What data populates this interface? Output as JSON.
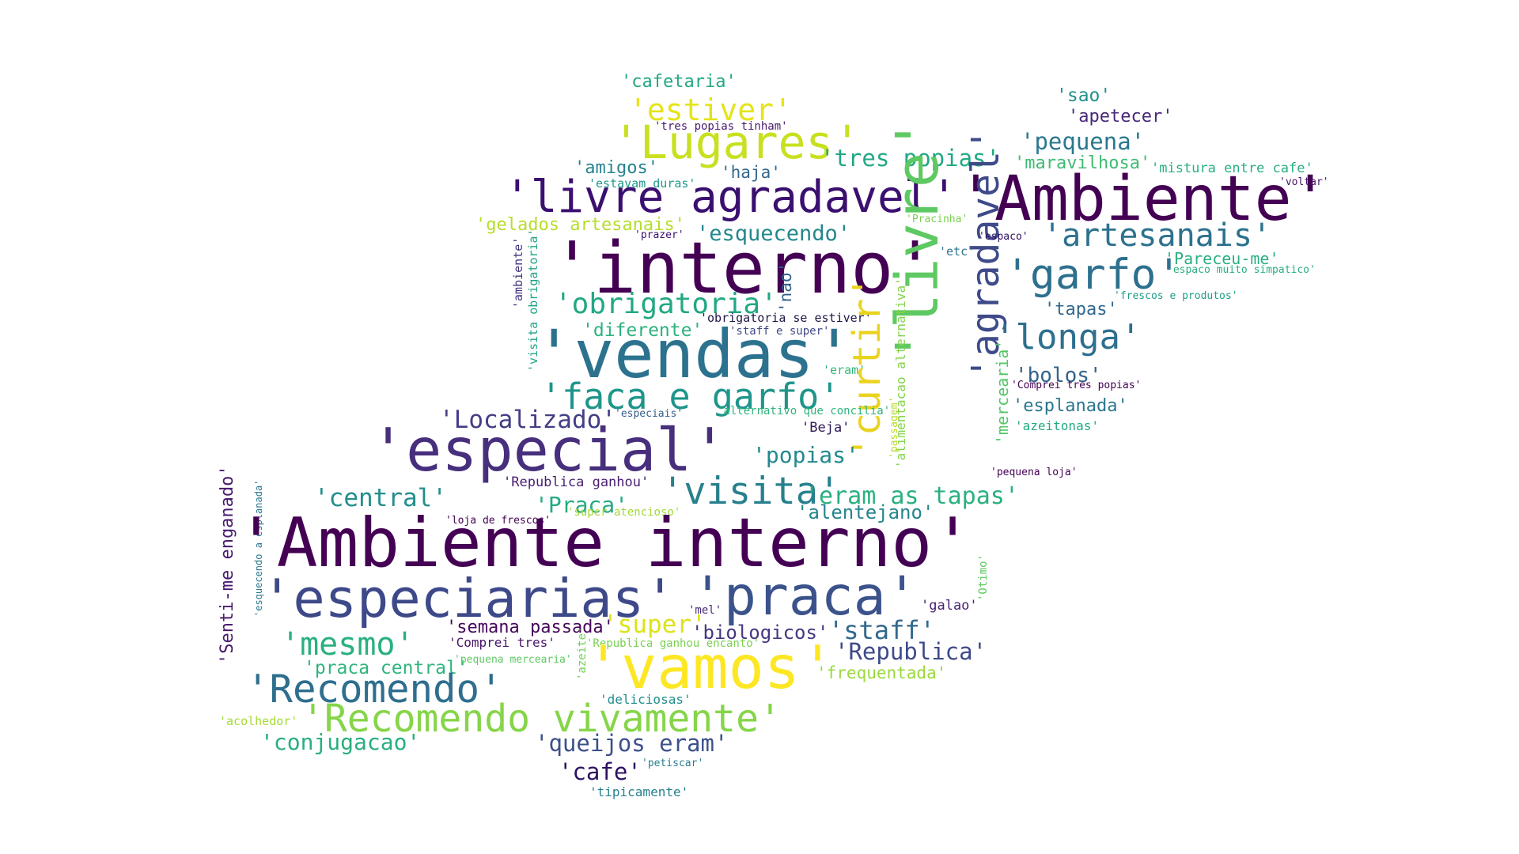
{
  "words": [
    {
      "text": "'cafetaria'",
      "color": "#25a884"
    },
    {
      "text": "'estiver'",
      "color": "#e5e419"
    },
    {
      "text": "'tres popias tinham'",
      "color": "#481a6c"
    },
    {
      "text": "'Lugares'",
      "color": "#c8e020"
    },
    {
      "text": "'tres popias'",
      "color": "#22a884"
    },
    {
      "text": "'amigos'",
      "color": "#26828e"
    },
    {
      "text": "'haja'",
      "color": "#31688e"
    },
    {
      "text": "'estavam duras'",
      "color": "#1f988b"
    },
    {
      "text": "'livre agradavel'",
      "color": "#3b0f70"
    },
    {
      "text": "'Ambiente'",
      "color": "#440154"
    },
    {
      "text": "'sao'",
      "color": "#21918c"
    },
    {
      "text": "'apetecer'",
      "color": "#482878"
    },
    {
      "text": "'pequena'",
      "color": "#2a788e"
    },
    {
      "text": "'maravilhosa'",
      "color": "#3fbc73"
    },
    {
      "text": "'mistura entre cafe'",
      "color": "#29af7f"
    },
    {
      "text": "'voltar'",
      "color": "#481467"
    },
    {
      "text": "'gelados artesanais'",
      "color": "#b5de2b"
    },
    {
      "text": "'prazer'",
      "color": "#3b0f70"
    },
    {
      "text": "'esquecendo'",
      "color": "#24878e"
    },
    {
      "text": "'interno'",
      "color": "#440154"
    },
    {
      "text": "'livre'",
      "color": "#5ec962"
    },
    {
      "text": "'agradavel'",
      "color": "#3e4a89"
    },
    {
      "text": "'Pracinha'",
      "color": "#7ad151"
    },
    {
      "text": "'espaco'",
      "color": "#2c0e5e"
    },
    {
      "text": "'etc'",
      "color": "#2b758e"
    },
    {
      "text": "'artesanais'",
      "color": "#2c728e"
    },
    {
      "text": "'Pareceu-me'",
      "color": "#29af7f"
    },
    {
      "text": "'espaco muito simpatico'",
      "color": "#2ab07f"
    },
    {
      "text": "'garfo'",
      "color": "#2d708e"
    },
    {
      "text": "'ambiente'",
      "color": "#46337f"
    },
    {
      "text": "'visita obrigatoria'",
      "color": "#20a386"
    },
    {
      "text": "'frescos e produtos'",
      "color": "#1e9c89"
    },
    {
      "text": "'obrigatoria'",
      "color": "#22a884"
    },
    {
      "text": "'nao'",
      "color": "#355f8d"
    },
    {
      "text": "'tapas'",
      "color": "#31688e"
    },
    {
      "text": "'obrigatoria se estiver'",
      "color": "#1f1646"
    },
    {
      "text": "'diferente'",
      "color": "#2db27d"
    },
    {
      "text": "'curtir'",
      "color": "#ead31f"
    },
    {
      "text": "'alimentacao alternativa'",
      "color": "#84d44b"
    },
    {
      "text": "'longa'",
      "color": "#2e6f8e"
    },
    {
      "text": "'staff e super'",
      "color": "#3e4989"
    },
    {
      "text": "'vendas'",
      "color": "#2c728e"
    },
    {
      "text": "'eram'",
      "color": "#35b779"
    },
    {
      "text": "'mercearia'",
      "color": "#55c667"
    },
    {
      "text": "'bolos'",
      "color": "#33638d"
    },
    {
      "text": "'Comprei tres popias'",
      "color": "#440154"
    },
    {
      "text": "'faca e garfo'",
      "color": "#1f958b"
    },
    {
      "text": "'esplanada'",
      "color": "#2a768e"
    },
    {
      "text": "'especiais'",
      "color": "#355e8d"
    },
    {
      "text": "'alternativo que concilia'",
      "color": "#2fb47c"
    },
    {
      "text": "'Localizado'",
      "color": "#433e85"
    },
    {
      "text": "'Beja'",
      "color": "#2e1a56"
    },
    {
      "text": "'azeitonas'",
      "color": "#24aa83"
    },
    {
      "text": "'especial'",
      "color": "#472f7d"
    },
    {
      "text": "'popias'",
      "color": "#23898e"
    },
    {
      "text": "'passagem'",
      "color": "#b8de29"
    },
    {
      "text": "'pequena loja'",
      "color": "#440154"
    },
    {
      "text": "'Republica ganhou'",
      "color": "#481f70"
    },
    {
      "text": "'visita'",
      "color": "#27808e"
    },
    {
      "text": "'eram as tapas'",
      "color": "#2ab07f"
    },
    {
      "text": "'central'",
      "color": "#218f8d"
    },
    {
      "text": "'Praca'",
      "color": "#24aa83"
    },
    {
      "text": "'alentejano'",
      "color": "#25848e"
    },
    {
      "text": "'loja de frescos'",
      "color": "#440154"
    },
    {
      "text": "'super atencioso'",
      "color": "#a2da37"
    },
    {
      "text": "'Senti-me enganado'",
      "color": "#481c6e"
    },
    {
      "text": "'esquecendo a esplanada'",
      "color": "#2a788e"
    },
    {
      "text": "'Ambiente interno'",
      "color": "#440154"
    },
    {
      "text": "'Otimo'",
      "color": "#5ec962"
    },
    {
      "text": "'especiarias'",
      "color": "#3e4989"
    },
    {
      "text": "'praca'",
      "color": "#3b528b"
    },
    {
      "text": "'mel'",
      "color": "#472c7a"
    },
    {
      "text": "'galao'",
      "color": "#482173"
    },
    {
      "text": "'semana passada'",
      "color": "#46085c"
    },
    {
      "text": "'super'",
      "color": "#dce319"
    },
    {
      "text": "'biologicos'",
      "color": "#453781"
    },
    {
      "text": "'staff'",
      "color": "#31688e"
    },
    {
      "text": "'mesmo'",
      "color": "#2ab07f"
    },
    {
      "text": "'Comprei tres'",
      "color": "#481467"
    },
    {
      "text": "'azeite'",
      "color": "#73d056"
    },
    {
      "text": "'Republica ganhou encanto'",
      "color": "#7ad151"
    },
    {
      "text": "'vamos'",
      "color": "#fde725"
    },
    {
      "text": "'Republica'",
      "color": "#3e4a89"
    },
    {
      "text": "'praca central'",
      "color": "#2fb47c"
    },
    {
      "text": "'pequena mercearia'",
      "color": "#5ec962"
    },
    {
      "text": "'Recomendo'",
      "color": "#2e6e8e"
    },
    {
      "text": "'frequentada'",
      "color": "#9bd93c"
    },
    {
      "text": "'deliciosas'",
      "color": "#228c8d"
    },
    {
      "text": "'acolhedor'",
      "color": "#a5db36"
    },
    {
      "text": "'Recomendo vivamente'",
      "color": "#86d549"
    },
    {
      "text": "'conjugacao'",
      "color": "#29af7f"
    },
    {
      "text": "'queijos eram'",
      "color": "#3c508b"
    },
    {
      "text": "'cafe'",
      "color": "#2d1160"
    },
    {
      "text": "'petiscar'",
      "color": "#277f8e"
    },
    {
      "text": "'tipicamente'",
      "color": "#27808e"
    }
  ]
}
